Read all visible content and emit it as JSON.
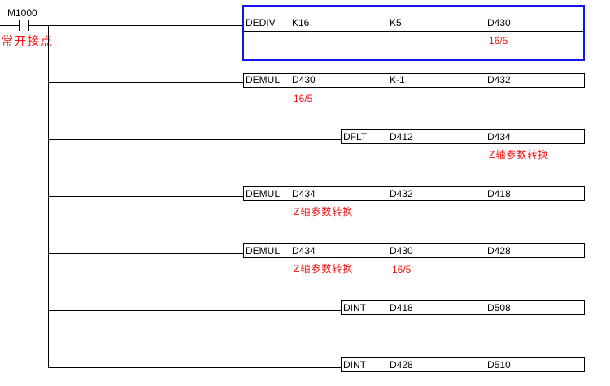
{
  "contact": {
    "label": "M1000",
    "comment": "常开接点"
  },
  "rungs": [
    {
      "op": "DEDIV",
      "args": [
        "K16",
        "K5",
        "D430"
      ],
      "comments": [
        "",
        "",
        "16/5"
      ]
    },
    {
      "op": "DEMUL",
      "args": [
        "D430",
        "K-1",
        "D432"
      ],
      "comments": [
        "16/5",
        "",
        ""
      ]
    },
    {
      "op": "DFLT",
      "args": [
        "D412",
        "D434"
      ],
      "comments": [
        "",
        "Z轴参数转换"
      ]
    },
    {
      "op": "DEMUL",
      "args": [
        "D434",
        "D432",
        "D418"
      ],
      "comments": [
        "Z轴参数转换",
        "",
        ""
      ]
    },
    {
      "op": "DEMUL",
      "args": [
        "D434",
        "D430",
        "D428"
      ],
      "comments": [
        "Z轴参数转换",
        "16/5",
        ""
      ]
    },
    {
      "op": "DINT",
      "args": [
        "D418",
        "D508"
      ],
      "comments": [
        "",
        ""
      ]
    },
    {
      "op": "DINT",
      "args": [
        "D428",
        "D510"
      ],
      "comments": [
        "",
        ""
      ]
    }
  ],
  "colors": {
    "selection": "#1414f0",
    "comment": "#f01010"
  }
}
